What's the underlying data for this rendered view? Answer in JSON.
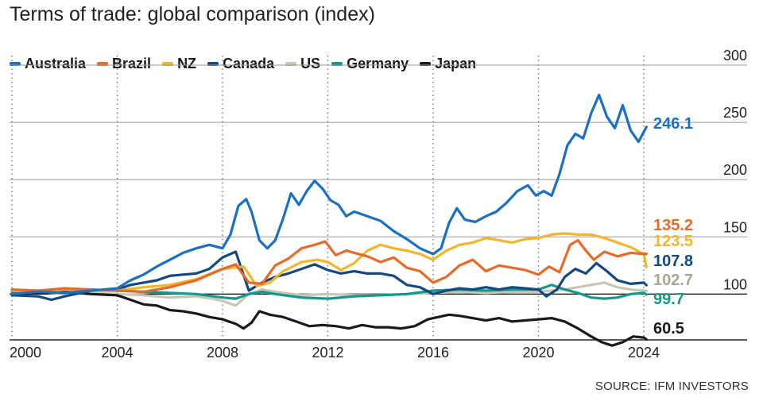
{
  "title": "Terms of trade: global comparison (index)",
  "source": "SOURCE: IFM INVESTORS",
  "chart_data": {
    "type": "line",
    "title": "Terms of trade: global comparison (index)",
    "xlabel": "",
    "ylabel": "",
    "xlim": [
      2000,
      2024.3
    ],
    "ylim": [
      60,
      300
    ],
    "x_ticks": [
      2000,
      2004,
      2008,
      2012,
      2016,
      2020,
      2024
    ],
    "y_ticks": [
      100,
      150,
      200,
      250,
      300
    ],
    "y_tick_labels": [
      "100",
      "150",
      "200",
      "250",
      "300"
    ],
    "x_tick_labels": [
      "2000",
      "2004",
      "2008",
      "2012",
      "2016",
      "2020",
      "2024"
    ],
    "grid": "horizontal solid lines; vertical dotted lines at year ticks",
    "legend_position": "top-left",
    "series": [
      {
        "name": "Australia",
        "color": "#1a70c2",
        "end_label": "246.1",
        "x": [
          2000,
          2001,
          2002,
          2003,
          2004,
          2004.5,
          2005,
          2005.5,
          2006,
          2006.5,
          2007,
          2007.5,
          2008,
          2008.3,
          2008.6,
          2008.9,
          2009.1,
          2009.4,
          2009.7,
          2010,
          2010.3,
          2010.6,
          2010.9,
          2011.2,
          2011.5,
          2011.8,
          2012.1,
          2012.4,
          2012.7,
          2013,
          2013.5,
          2014,
          2014.5,
          2015,
          2015.5,
          2016,
          2016.3,
          2016.6,
          2016.9,
          2017.2,
          2017.6,
          2018,
          2018.4,
          2018.8,
          2019.2,
          2019.6,
          2019.9,
          2020.2,
          2020.5,
          2020.8,
          2021.1,
          2021.4,
          2021.7,
          2022,
          2022.3,
          2022.6,
          2022.9,
          2023.2,
          2023.5,
          2023.8,
          2024.1
        ],
        "values": [
          100,
          102,
          101,
          103,
          105,
          112,
          117,
          124,
          130,
          136,
          140,
          143,
          140,
          152,
          177,
          183,
          172,
          147,
          140,
          147,
          166,
          188,
          178,
          190,
          199,
          192,
          182,
          178,
          168,
          172,
          168,
          164,
          155,
          148,
          140,
          135,
          140,
          162,
          175,
          165,
          163,
          168,
          172,
          180,
          190,
          195,
          186,
          190,
          186,
          205,
          230,
          240,
          236,
          258,
          274,
          255,
          245,
          265,
          243,
          233,
          246
        ]
      },
      {
        "name": "Brazil",
        "color": "#e86a2a",
        "end_label": "135.2",
        "x": [
          2000,
          2001,
          2002,
          2003,
          2004,
          2005,
          2006,
          2007,
          2008,
          2008.5,
          2009,
          2009.5,
          2010,
          2010.5,
          2011,
          2011.5,
          2011.9,
          2012.3,
          2012.7,
          2013,
          2013.5,
          2014,
          2014.5,
          2015,
          2015.5,
          2016,
          2016.5,
          2017,
          2017.5,
          2018,
          2018.5,
          2019,
          2019.5,
          2020,
          2020.4,
          2020.8,
          2021.2,
          2021.5,
          2021.8,
          2022.1,
          2022.5,
          2023,
          2023.5,
          2024,
          2024.1
        ],
        "values": [
          104,
          103,
          105,
          104,
          103,
          102,
          106,
          112,
          122,
          126,
          110,
          109,
          125,
          131,
          140,
          143,
          146,
          134,
          138,
          136,
          133,
          128,
          132,
          123,
          120,
          110,
          115,
          125,
          130,
          120,
          125,
          123,
          121,
          117,
          124,
          119,
          143,
          147,
          138,
          130,
          137,
          133,
          136,
          135,
          135.2
        ]
      },
      {
        "name": "NZ",
        "color": "#f1b62c",
        "end_label": "123.5",
        "x": [
          2000,
          2001,
          2002,
          2003,
          2004,
          2005,
          2006,
          2007,
          2008,
          2008.8,
          2009.3,
          2009.8,
          2010.3,
          2011,
          2011.6,
          2012,
          2012.5,
          2013,
          2013.5,
          2014,
          2014.5,
          2015,
          2015.5,
          2016,
          2016.5,
          2017,
          2017.5,
          2018,
          2018.5,
          2019,
          2019.5,
          2020,
          2020.5,
          2021,
          2021.5,
          2022,
          2022.5,
          2023,
          2023.5,
          2024,
          2024.1
        ],
        "values": [
          103,
          102,
          104,
          103,
          103,
          106,
          108,
          113,
          122,
          124,
          107,
          110,
          120,
          128,
          130,
          128,
          121,
          127,
          138,
          143,
          140,
          138,
          135,
          130,
          138,
          143,
          145,
          149,
          147,
          145,
          148,
          149,
          152,
          153,
          152,
          152,
          149,
          145,
          141,
          135,
          123.5
        ]
      },
      {
        "name": "Canada",
        "color": "#124a80",
        "end_label": "107.8",
        "x": [
          2000,
          2001,
          2001.5,
          2002,
          2003,
          2004,
          2004.5,
          2005,
          2005.5,
          2006,
          2006.5,
          2007,
          2007.5,
          2008,
          2008.5,
          2009,
          2009.5,
          2010,
          2010.5,
          2011,
          2011.5,
          2012,
          2012.5,
          2013,
          2013.5,
          2014,
          2014.5,
          2015,
          2015.5,
          2016,
          2016.5,
          2017,
          2017.5,
          2018,
          2018.5,
          2019,
          2019.5,
          2020,
          2020.3,
          2020.7,
          2021,
          2021.4,
          2021.8,
          2022.2,
          2022.6,
          2023,
          2023.5,
          2024,
          2024.1
        ],
        "values": [
          99,
          98,
          95,
          98,
          103,
          104,
          108,
          110,
          112,
          116,
          117,
          118,
          122,
          132,
          137,
          103,
          110,
          115,
          118,
          122,
          126,
          121,
          118,
          120,
          118,
          118,
          116,
          108,
          106,
          100,
          103,
          105,
          104,
          106,
          104,
          106,
          105,
          104,
          98,
          104,
          115,
          122,
          118,
          127,
          120,
          112,
          109,
          110,
          107.8
        ]
      },
      {
        "name": "US",
        "color": "#c9c6b3",
        "end_label": "102.7",
        "x": [
          2000,
          2001,
          2002,
          2003,
          2004,
          2005,
          2006,
          2007,
          2007.6,
          2008,
          2008.5,
          2009,
          2009.5,
          2010,
          2011,
          2012,
          2013,
          2014,
          2015,
          2016,
          2017,
          2018,
          2019,
          2020,
          2020.5,
          2021,
          2021.5,
          2022,
          2022.5,
          2023,
          2023.5,
          2024,
          2024.1
        ],
        "values": [
          101,
          102,
          100,
          101,
          100,
          99,
          97,
          98,
          96,
          94,
          90,
          100,
          104,
          102,
          99,
          100,
          99,
          99,
          100,
          101,
          102,
          101,
          102,
          102,
          103,
          104,
          106,
          108,
          110,
          106,
          104,
          103,
          102.7
        ]
      },
      {
        "name": "Germany",
        "color": "#17968c",
        "end_label": "99.7",
        "x": [
          2000,
          2001,
          2002,
          2003,
          2004,
          2005,
          2006,
          2007,
          2008,
          2008.5,
          2009,
          2009.5,
          2010,
          2011,
          2012,
          2013,
          2014,
          2015,
          2016,
          2017,
          2018,
          2019,
          2020,
          2020.5,
          2021,
          2021.5,
          2022,
          2022.5,
          2023,
          2023.5,
          2024,
          2024.1
        ],
        "values": [
          102,
          101,
          103,
          104,
          103,
          102,
          101,
          100,
          97,
          96,
          100,
          102,
          100,
          97,
          96,
          98,
          99,
          100,
          103,
          104,
          103,
          104,
          104,
          108,
          104,
          101,
          97,
          96,
          97,
          100,
          101,
          99.7
        ]
      },
      {
        "name": "Japan",
        "color": "#1a1a1a",
        "end_label": "60.5",
        "x": [
          2000,
          2001,
          2002,
          2003,
          2004,
          2004.5,
          2005,
          2005.5,
          2006,
          2006.5,
          2007,
          2007.5,
          2008,
          2008.5,
          2008.8,
          2009.1,
          2009.4,
          2009.8,
          2010.3,
          2010.8,
          2011.3,
          2011.8,
          2012.3,
          2012.8,
          2013.3,
          2013.8,
          2014.3,
          2014.8,
          2015.3,
          2015.8,
          2016.2,
          2016.6,
          2017,
          2017.5,
          2018,
          2018.5,
          2019,
          2019.5,
          2020,
          2020.5,
          2021,
          2021.5,
          2022,
          2022.4,
          2022.8,
          2023.2,
          2023.6,
          2024,
          2024.1
        ],
        "values": [
          100,
          101,
          102,
          100,
          99,
          95,
          91,
          90,
          86,
          85,
          83,
          80,
          78,
          74,
          70,
          75,
          85,
          82,
          80,
          76,
          72,
          73,
          72,
          70,
          73,
          71,
          71,
          70,
          72,
          78,
          80,
          82,
          81,
          79,
          77,
          79,
          76,
          77,
          78,
          79,
          76,
          70,
          63,
          58,
          55,
          58,
          63,
          62,
          60.5
        ]
      }
    ]
  }
}
